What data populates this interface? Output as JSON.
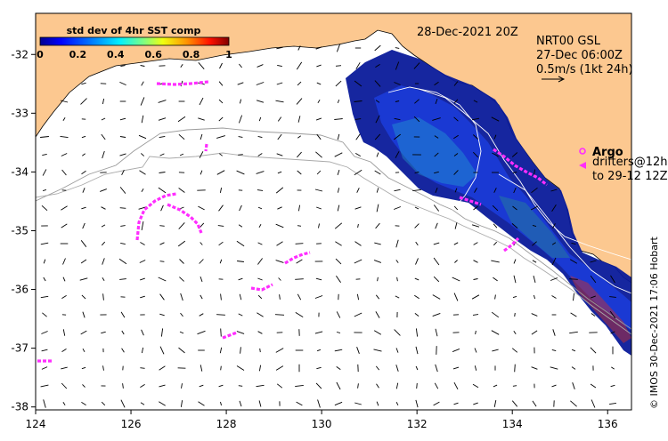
{
  "map": {
    "title_date": "28-Dec-2021 20Z",
    "product": {
      "line1": "NRT00 GSL",
      "line2": "27-Dec 06:00Z",
      "line3": "0.5m/s (1kt 24h)"
    },
    "colorbar": {
      "title": "std dev of 4hr SST comp",
      "ticks": [
        "0",
        "0.2",
        "0.4",
        "0.6",
        "0.8",
        "1"
      ],
      "colors": [
        "#00008f",
        "#0000ff",
        "#0070ff",
        "#00e0ff",
        "#60ff9f",
        "#d0ff30",
        "#ffd000",
        "#ff6000",
        "#e00000",
        "#800000"
      ]
    },
    "legend": {
      "argo_label": "Argo",
      "drifters_label": "drifters@12h",
      "drifters_range": "to 29-12 12Z"
    },
    "credit": "© IMOS 30-Dec-2021 17:06 Hobart",
    "axes": {
      "lon_ticks": [
        "124",
        "126",
        "128",
        "130",
        "132",
        "134",
        "136"
      ],
      "lat_ticks": [
        "-32",
        "-33",
        "-34",
        "-35",
        "-36",
        "-37",
        "-38"
      ],
      "lon_range": [
        124,
        136.5
      ],
      "lat_range": [
        -38.05,
        -31.3
      ]
    },
    "colors": {
      "land": "#fcc890",
      "sea": "#ffffff",
      "drifter": "#ff2dff",
      "depth_contour": "#9a9a9a"
    }
  }
}
